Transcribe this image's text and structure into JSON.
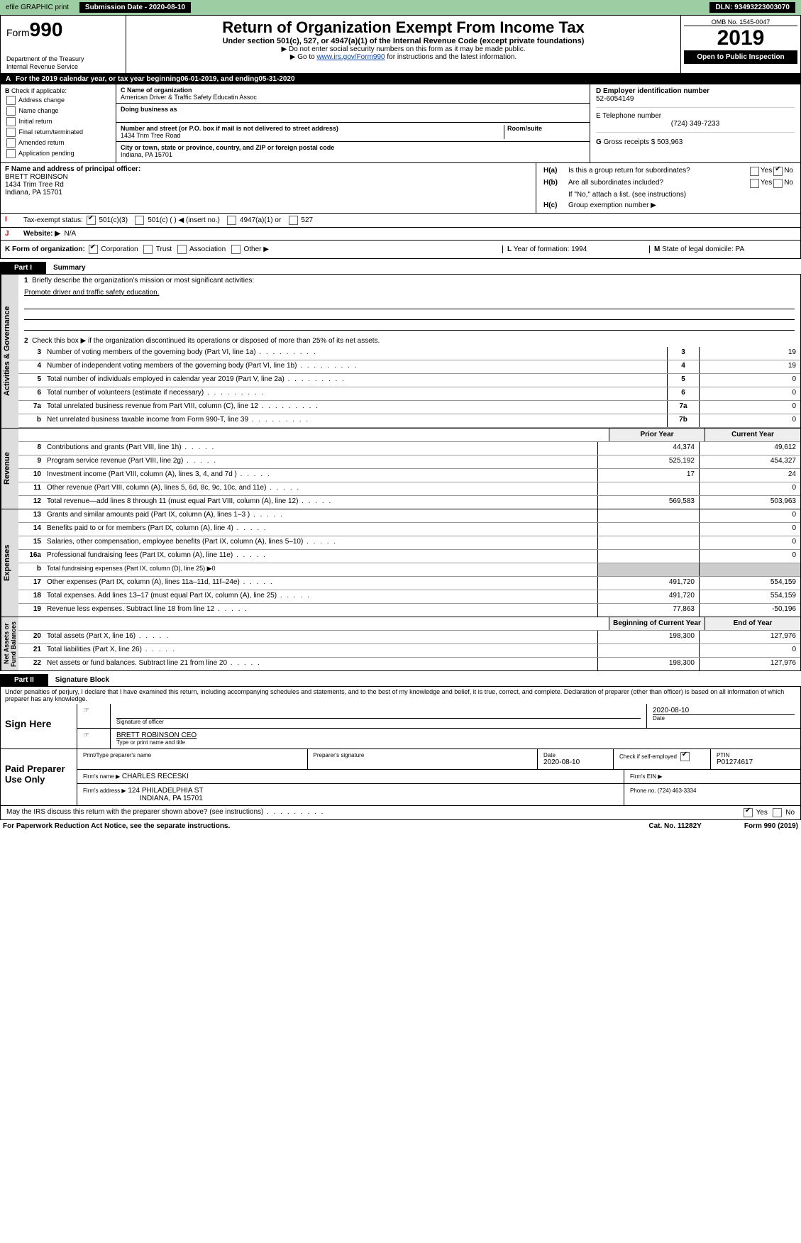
{
  "top": {
    "efile": "efile GRAPHIC print",
    "submission": "Submission Date - 2020-08-10",
    "dln": "DLN: 93493223003070"
  },
  "header": {
    "form_word": "Form",
    "form_num": "990",
    "dept": "Department of the Treasury",
    "irs": "Internal Revenue Service",
    "title": "Return of Organization Exempt From Income Tax",
    "subtitle": "Under section 501(c), 527, or 4947(a)(1) of the Internal Revenue Code (except private foundations)",
    "note1": "▶ Do not enter social security numbers on this form as it may be made public.",
    "note2_pre": "▶ Go to ",
    "note2_link": "www.irs.gov/Form990",
    "note2_post": " for instructions and the latest information.",
    "omb": "OMB No. 1545-0047",
    "year": "2019",
    "open": "Open to Public Inspection"
  },
  "a": {
    "text_pre": "For the 2019 calendar year, or tax year beginning ",
    "begin": "06-01-2019",
    "mid": ", and ending ",
    "end": "05-31-2020"
  },
  "b": {
    "label": "Check if applicable:",
    "opts": [
      "Address change",
      "Name change",
      "Initial return",
      "Final return/terminated",
      "Amended return",
      "Application pending"
    ]
  },
  "c": {
    "label": "C Name of organization",
    "name": "American Driver & Traffic Safety Educatin Assoc",
    "dba_label": "Doing business as",
    "addr_label": "Number and street (or P.O. box if mail is not delivered to street address)",
    "room_label": "Room/suite",
    "addr": "1434 Trim Tree Road",
    "city_label": "City or town, state or province, country, and ZIP or foreign postal code",
    "city": "Indiana, PA   15701"
  },
  "d": {
    "label": "D Employer identification number",
    "val": "52-6054149"
  },
  "e": {
    "label": "E Telephone number",
    "val": "(724) 349-7233"
  },
  "g": {
    "label": "G",
    "text": "Gross receipts $ ",
    "val": "503,963"
  },
  "f": {
    "label": "F  Name and address of principal officer:",
    "name": "BRETT ROBINSON",
    "addr": "1434 Trim Tree Rd",
    "city": "Indiana, PA   15701"
  },
  "h": {
    "a": "Is this a group return for subordinates?",
    "b": "Are all subordinates included?",
    "b2": "If \"No,\" attach a list. (see instructions)",
    "c": "Group exemption number ▶",
    "yes": "Yes",
    "no": "No"
  },
  "i": {
    "label": "Tax-exempt status:",
    "o1": "501(c)(3)",
    "o2": "501(c) (  ) ◀ (insert no.)",
    "o3": "4947(a)(1) or",
    "o4": "527"
  },
  "j": {
    "label": "Website: ▶",
    "val": "N/A"
  },
  "k": {
    "label": "K Form of organization:",
    "o1": "Corporation",
    "o2": "Trust",
    "o3": "Association",
    "o4": "Other ▶"
  },
  "l": {
    "label": "L",
    "text": "Year of formation: ",
    "val": "1994"
  },
  "m": {
    "label": "M",
    "text": "State of legal domicile: ",
    "val": "PA"
  },
  "part1": {
    "tab": "Part I",
    "title": "Summary"
  },
  "summary": {
    "l1": "Briefly describe the organization's mission or most significant activities:",
    "l1v": "Promote driver and traffic safety education.",
    "l2": "Check this box ▶        if the organization discontinued its operations or disposed of more than 25% of its net assets.",
    "rows": [
      {
        "n": "3",
        "d": "Number of voting members of the governing body (Part VI, line 1a)",
        "rn": "3",
        "v": "19"
      },
      {
        "n": "4",
        "d": "Number of independent voting members of the governing body (Part VI, line 1b)",
        "rn": "4",
        "v": "19"
      },
      {
        "n": "5",
        "d": "Total number of individuals employed in calendar year 2019 (Part V, line 2a)",
        "rn": "5",
        "v": "0"
      },
      {
        "n": "6",
        "d": "Total number of volunteers (estimate if necessary)",
        "rn": "6",
        "v": "0"
      },
      {
        "n": "7a",
        "d": "Total unrelated business revenue from Part VIII, column (C), line 12",
        "rn": "7a",
        "v": "0"
      },
      {
        "n": "b",
        "d": "Net unrelated business taxable income from Form 990-T, line 39",
        "rn": "7b",
        "v": "0"
      }
    ]
  },
  "revenue": {
    "th_prior": "Prior Year",
    "th_curr": "Current Year",
    "rows": [
      {
        "n": "8",
        "d": "Contributions and grants (Part VIII, line 1h)",
        "a": "44,374",
        "b": "49,612"
      },
      {
        "n": "9",
        "d": "Program service revenue (Part VIII, line 2g)",
        "a": "525,192",
        "b": "454,327"
      },
      {
        "n": "10",
        "d": "Investment income (Part VIII, column (A), lines 3, 4, and 7d )",
        "a": "17",
        "b": "24"
      },
      {
        "n": "11",
        "d": "Other revenue (Part VIII, column (A), lines 5, 6d, 8c, 9c, 10c, and 11e)",
        "a": "",
        "b": "0"
      },
      {
        "n": "12",
        "d": "Total revenue—add lines 8 through 11 (must equal Part VIII, column (A), line 12)",
        "a": "569,583",
        "b": "503,963"
      }
    ]
  },
  "expenses": {
    "rows": [
      {
        "n": "13",
        "d": "Grants and similar amounts paid (Part IX, column (A), lines 1–3 )",
        "a": "",
        "b": "0"
      },
      {
        "n": "14",
        "d": "Benefits paid to or for members (Part IX, column (A), line 4)",
        "a": "",
        "b": "0"
      },
      {
        "n": "15",
        "d": "Salaries, other compensation, employee benefits (Part IX, column (A), lines 5–10)",
        "a": "",
        "b": "0"
      },
      {
        "n": "16a",
        "d": "Professional fundraising fees (Part IX, column (A), line 11e)",
        "a": "",
        "b": "0"
      },
      {
        "n": "b",
        "d": "Total fundraising expenses (Part IX, column (D), line 25) ▶0",
        "a": null,
        "b": null
      },
      {
        "n": "17",
        "d": "Other expenses (Part IX, column (A), lines 11a–11d, 11f–24e)",
        "a": "491,720",
        "b": "554,159"
      },
      {
        "n": "18",
        "d": "Total expenses. Add lines 13–17 (must equal Part IX, column (A), line 25)",
        "a": "491,720",
        "b": "554,159"
      },
      {
        "n": "19",
        "d": "Revenue less expenses. Subtract line 18 from line 12",
        "a": "77,863",
        "b": "-50,196"
      }
    ]
  },
  "net": {
    "th_a": "Beginning of Current Year",
    "th_b": "End of Year",
    "rows": [
      {
        "n": "20",
        "d": "Total assets (Part X, line 16)",
        "a": "198,300",
        "b": "127,976"
      },
      {
        "n": "21",
        "d": "Total liabilities (Part X, line 26)",
        "a": "",
        "b": "0"
      },
      {
        "n": "22",
        "d": "Net assets or fund balances. Subtract line 21 from line 20",
        "a": "198,300",
        "b": "127,976"
      }
    ]
  },
  "part2": {
    "tab": "Part II",
    "title": "Signature Block"
  },
  "penalty": "Under penalties of perjury, I declare that I have examined this return, including accompanying schedules and statements, and to the best of my knowledge and belief, it is true, correct, and complete. Declaration of preparer (other than officer) is based on all information of which preparer has any knowledge.",
  "sign": {
    "here": "Sign Here",
    "sig_officer": "Signature of officer",
    "date": "Date",
    "date_v": "2020-08-10",
    "name": "BRETT ROBINSON CEO",
    "name_label": "Type or print name and title"
  },
  "paid": {
    "label": "Paid Preparer Use Only",
    "h1": "Print/Type preparer's name",
    "h2": "Preparer's signature",
    "h3": "Date",
    "h4": "PTIN",
    "date": "2020-08-10",
    "check": "Check        if self-employed",
    "ptin": "P01274617",
    "firm_name_l": "Firm's name    ▶",
    "firm_name": "CHARLES RECESKI",
    "firm_ein": "Firm's EIN ▶",
    "firm_addr_l": "Firm's address ▶",
    "firm_addr1": "124 PHILADELPHIA ST",
    "firm_addr2": "INDIANA, PA   15701",
    "phone": "Phone no. (724) 463-3334"
  },
  "may": "May the IRS discuss this return with the preparer shown above? (see instructions)",
  "footer": {
    "l": "For Paperwork Reduction Act Notice, see the separate instructions.",
    "m": "Cat. No. 11282Y",
    "r": "Form 990 (2019)"
  }
}
